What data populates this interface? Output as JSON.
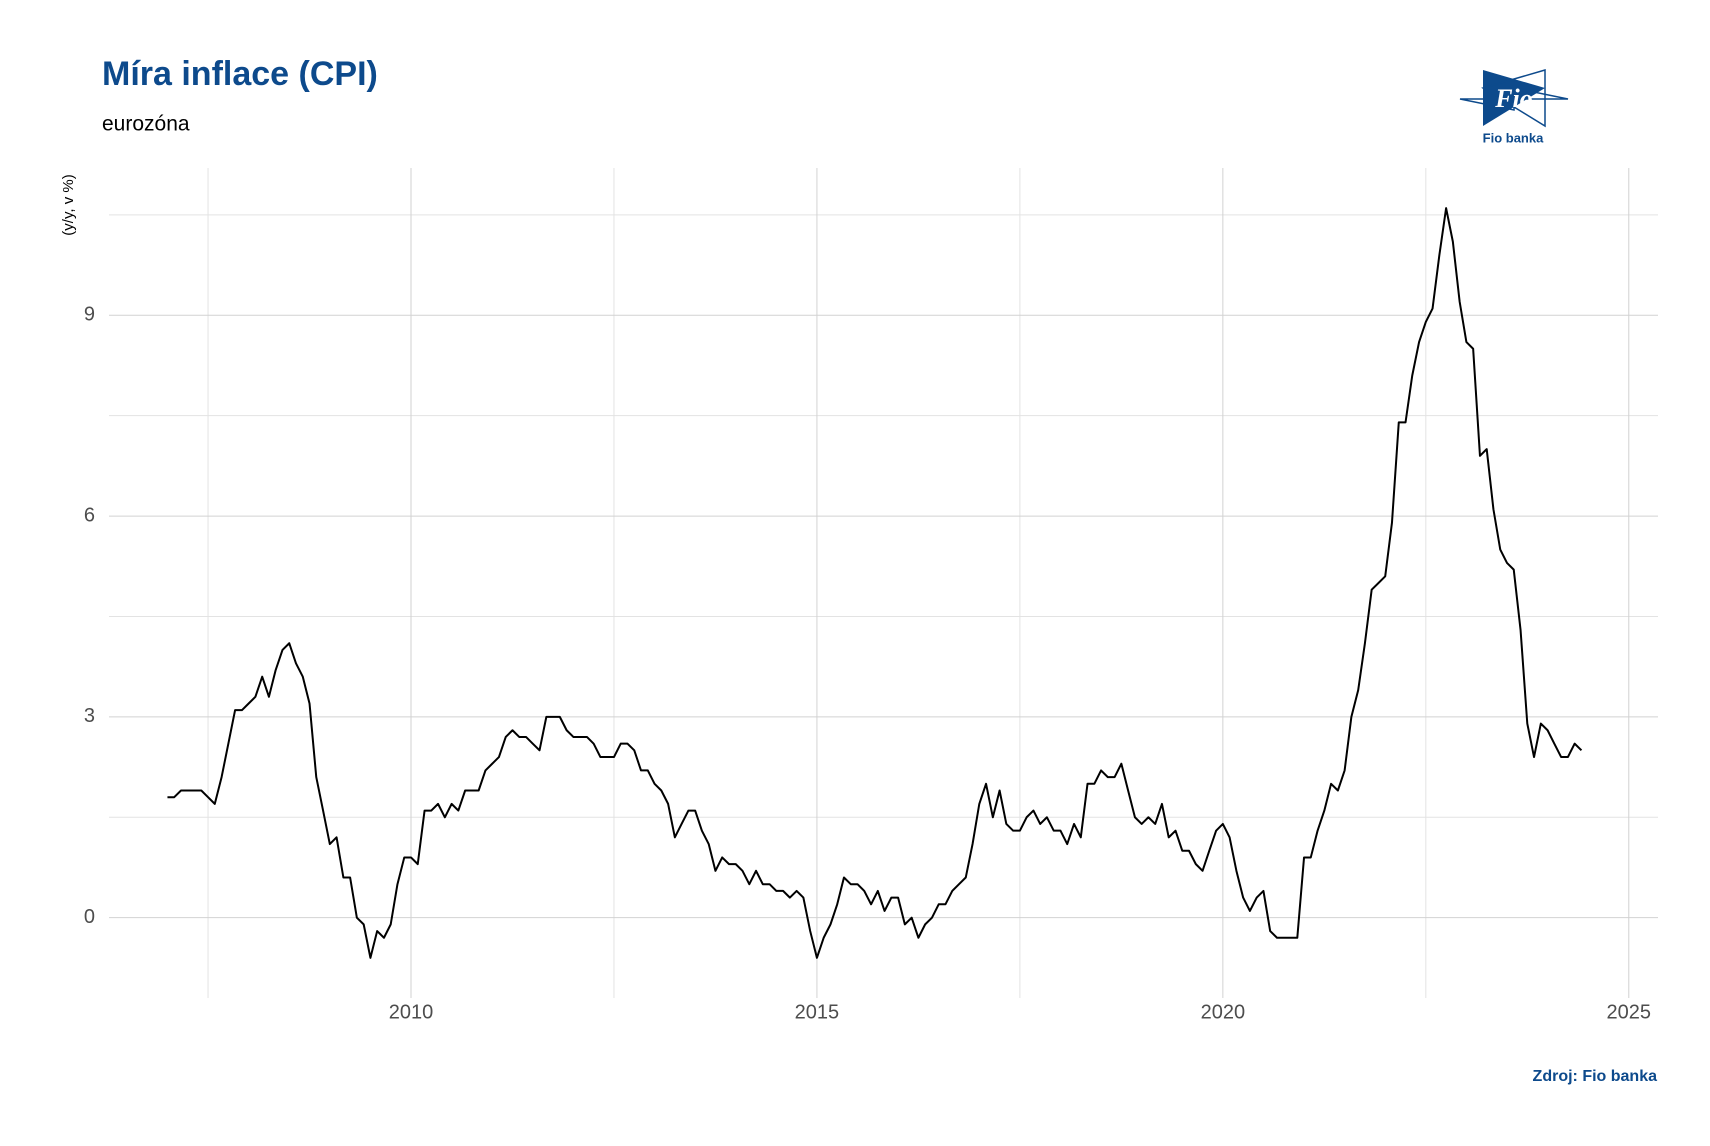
{
  "chart_data": {
    "type": "line",
    "title": "Míra inflace (CPI)",
    "subtitle": "eurozóna",
    "y_label": "(y/y, v %)",
    "source": "Zdroj: Fio banka",
    "logo": {
      "mark": "Fio",
      "name": "Fio banka"
    },
    "color": "#000000",
    "grid": true,
    "xlim": [
      2006.28,
      2025.36
    ],
    "xticks": [
      2010,
      2015,
      2020,
      2025
    ],
    "xminor": [
      2007.5,
      2012.5,
      2017.5,
      2022.5
    ],
    "ylim": [
      -1.2,
      11.2
    ],
    "yticks": [
      0,
      3,
      6,
      9
    ],
    "yminor": [
      1.5,
      4.5,
      7.5,
      10.5
    ],
    "x": [
      2007,
      2007.083,
      2007.167,
      2007.25,
      2007.333,
      2007.417,
      2007.5,
      2007.583,
      2007.667,
      2007.75,
      2007.833,
      2007.917,
      2008,
      2008.083,
      2008.167,
      2008.25,
      2008.333,
      2008.417,
      2008.5,
      2008.583,
      2008.667,
      2008.75,
      2008.833,
      2008.917,
      2009,
      2009.083,
      2009.167,
      2009.25,
      2009.333,
      2009.417,
      2009.5,
      2009.583,
      2009.667,
      2009.75,
      2009.833,
      2009.917,
      2010,
      2010.083,
      2010.167,
      2010.25,
      2010.333,
      2010.417,
      2010.5,
      2010.583,
      2010.667,
      2010.75,
      2010.833,
      2010.917,
      2011,
      2011.083,
      2011.167,
      2011.25,
      2011.333,
      2011.417,
      2011.5,
      2011.583,
      2011.667,
      2011.75,
      2011.833,
      2011.917,
      2012,
      2012.083,
      2012.167,
      2012.25,
      2012.333,
      2012.417,
      2012.5,
      2012.583,
      2012.667,
      2012.75,
      2012.833,
      2012.917,
      2013,
      2013.083,
      2013.167,
      2013.25,
      2013.333,
      2013.417,
      2013.5,
      2013.583,
      2013.667,
      2013.75,
      2013.833,
      2013.917,
      2014,
      2014.083,
      2014.167,
      2014.25,
      2014.333,
      2014.417,
      2014.5,
      2014.583,
      2014.667,
      2014.75,
      2014.833,
      2014.917,
      2015,
      2015.083,
      2015.167,
      2015.25,
      2015.333,
      2015.417,
      2015.5,
      2015.583,
      2015.667,
      2015.75,
      2015.833,
      2015.917,
      2016,
      2016.083,
      2016.167,
      2016.25,
      2016.333,
      2016.417,
      2016.5,
      2016.583,
      2016.667,
      2016.75,
      2016.833,
      2016.917,
      2017,
      2017.083,
      2017.167,
      2017.25,
      2017.333,
      2017.417,
      2017.5,
      2017.583,
      2017.667,
      2017.75,
      2017.833,
      2017.917,
      2018,
      2018.083,
      2018.167,
      2018.25,
      2018.333,
      2018.417,
      2018.5,
      2018.583,
      2018.667,
      2018.75,
      2018.833,
      2018.917,
      2019,
      2019.083,
      2019.167,
      2019.25,
      2019.333,
      2019.417,
      2019.5,
      2019.583,
      2019.667,
      2019.75,
      2019.833,
      2019.917,
      2020,
      2020.083,
      2020.167,
      2020.25,
      2020.333,
      2020.417,
      2020.5,
      2020.583,
      2020.667,
      2020.75,
      2020.833,
      2020.917,
      2021,
      2021.083,
      2021.167,
      2021.25,
      2021.333,
      2021.417,
      2021.5,
      2021.583,
      2021.667,
      2021.75,
      2021.833,
      2021.917,
      2022,
      2022.083,
      2022.167,
      2022.25,
      2022.333,
      2022.417,
      2022.5,
      2022.583,
      2022.667,
      2022.75,
      2022.833,
      2022.917,
      2023,
      2023.083,
      2023.167,
      2023.25,
      2023.333,
      2023.417,
      2023.5,
      2023.583,
      2023.667,
      2023.75,
      2023.833,
      2023.917,
      2024,
      2024.083,
      2024.167,
      2024.25,
      2024.333,
      2024.417
    ],
    "values": [
      1.8,
      1.8,
      1.9,
      1.9,
      1.9,
      1.9,
      1.8,
      1.7,
      2.1,
      2.6,
      3.1,
      3.1,
      3.2,
      3.3,
      3.6,
      3.3,
      3.7,
      4.0,
      4.1,
      3.8,
      3.6,
      3.2,
      2.1,
      1.6,
      1.1,
      1.2,
      0.6,
      0.6,
      0.0,
      -0.1,
      -0.6,
      -0.2,
      -0.3,
      -0.1,
      0.5,
      0.9,
      0.9,
      0.8,
      1.6,
      1.6,
      1.7,
      1.5,
      1.7,
      1.6,
      1.9,
      1.9,
      1.9,
      2.2,
      2.3,
      2.4,
      2.7,
      2.8,
      2.7,
      2.7,
      2.6,
      2.5,
      3.0,
      3.0,
      3.0,
      2.8,
      2.7,
      2.7,
      2.7,
      2.6,
      2.4,
      2.4,
      2.4,
      2.6,
      2.6,
      2.5,
      2.2,
      2.2,
      2.0,
      1.9,
      1.7,
      1.2,
      1.4,
      1.6,
      1.6,
      1.3,
      1.1,
      0.7,
      0.9,
      0.8,
      0.8,
      0.7,
      0.5,
      0.7,
      0.5,
      0.5,
      0.4,
      0.4,
      0.3,
      0.4,
      0.3,
      -0.2,
      -0.6,
      -0.3,
      -0.1,
      0.2,
      0.6,
      0.5,
      0.5,
      0.4,
      0.2,
      0.4,
      0.1,
      0.3,
      0.3,
      -0.1,
      0.0,
      -0.3,
      -0.1,
      0.0,
      0.2,
      0.2,
      0.4,
      0.5,
      0.6,
      1.1,
      1.7,
      2.0,
      1.5,
      1.9,
      1.4,
      1.3,
      1.3,
      1.5,
      1.6,
      1.4,
      1.5,
      1.3,
      1.3,
      1.1,
      1.4,
      1.2,
      2.0,
      2.0,
      2.2,
      2.1,
      2.1,
      2.3,
      1.9,
      1.5,
      1.4,
      1.5,
      1.4,
      1.7,
      1.2,
      1.3,
      1.0,
      1.0,
      0.8,
      0.7,
      1.0,
      1.3,
      1.4,
      1.2,
      0.7,
      0.3,
      0.1,
      0.3,
      0.4,
      -0.2,
      -0.3,
      -0.3,
      -0.3,
      -0.3,
      0.9,
      0.9,
      1.3,
      1.6,
      2.0,
      1.9,
      2.2,
      3.0,
      3.4,
      4.1,
      4.9,
      5.0,
      5.1,
      5.9,
      7.4,
      7.4,
      8.1,
      8.6,
      8.9,
      9.1,
      9.9,
      10.6,
      10.1,
      9.2,
      8.6,
      8.5,
      6.9,
      7.0,
      6.1,
      5.5,
      5.3,
      5.2,
      4.3,
      2.9,
      2.4,
      2.9,
      2.8,
      2.6,
      2.4,
      2.4,
      2.6,
      2.5
    ]
  }
}
